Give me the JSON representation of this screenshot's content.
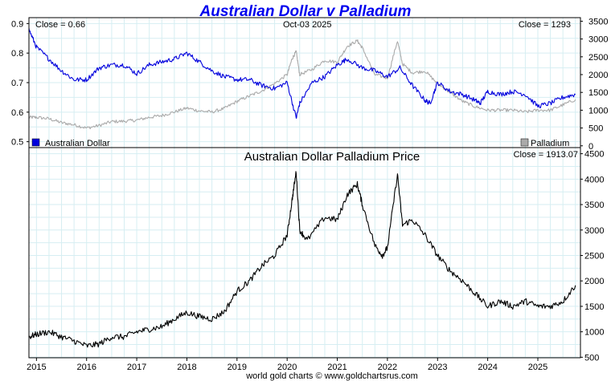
{
  "colors": {
    "aud": "#0000dd",
    "palladium": "#aaaaaa",
    "price": "#000000",
    "title": "#0000ee",
    "grid": "#d6eef2",
    "frame": "#000000"
  },
  "header": {
    "title": "Australian Dollar v Palladium"
  },
  "top_panel": {
    "close_left": "Close = 0.66",
    "date_label": "Oct-03  2025",
    "close_right": "Close = 1293",
    "legend_left": "Australian Dollar",
    "legend_right": "Palladium"
  },
  "bottom_panel": {
    "title": "Australian Dollar Palladium Price",
    "close_label": "Close = 1913.07"
  },
  "footer": {
    "text": "world gold charts © www.goldchartsrus.com"
  },
  "chart_data": [
    {
      "type": "line",
      "title": "Australian Dollar v Palladium",
      "x_range": [
        2014.85,
        2025.85
      ],
      "x_ticks": [
        "2015",
        "2016",
        "2017",
        "2018",
        "2019",
        "2020",
        "2021",
        "2022",
        "2023",
        "2024",
        "2025"
      ],
      "x_tick_values": [
        2015,
        2016,
        2017,
        2018,
        2019,
        2020,
        2021,
        2022,
        2023,
        2024,
        2025
      ],
      "left_axis": {
        "range": [
          0.48,
          0.92
        ],
        "ticks": [
          "0.5",
          "0.6",
          "0.7",
          "0.8",
          "0.9"
        ],
        "tick_values": [
          0.5,
          0.6,
          0.7,
          0.8,
          0.9
        ]
      },
      "right_axis": {
        "range": [
          -50,
          3600
        ],
        "ticks": [
          "0",
          "500",
          "1000",
          "1500",
          "2000",
          "2500",
          "3000",
          "3500"
        ],
        "tick_values": [
          0,
          500,
          1000,
          1500,
          2000,
          2500,
          3000,
          3500
        ]
      },
      "grid": true,
      "series": [
        {
          "name": "Australian Dollar",
          "axis": "left",
          "x": [
            2014.85,
            2015.0,
            2015.25,
            2015.5,
            2015.75,
            2016.0,
            2016.25,
            2016.5,
            2016.75,
            2017.0,
            2017.25,
            2017.5,
            2017.75,
            2018.0,
            2018.25,
            2018.5,
            2018.75,
            2019.0,
            2019.25,
            2019.5,
            2019.75,
            2020.0,
            2020.18,
            2020.25,
            2020.5,
            2020.75,
            2021.0,
            2021.2,
            2021.5,
            2021.75,
            2022.0,
            2022.25,
            2022.5,
            2022.75,
            2022.85,
            2023.0,
            2023.25,
            2023.5,
            2023.75,
            2023.85,
            2024.0,
            2024.25,
            2024.5,
            2024.75,
            2025.0,
            2025.25,
            2025.5,
            2025.75
          ],
          "values": [
            0.88,
            0.82,
            0.78,
            0.74,
            0.71,
            0.71,
            0.75,
            0.76,
            0.76,
            0.73,
            0.76,
            0.77,
            0.78,
            0.8,
            0.77,
            0.74,
            0.72,
            0.71,
            0.71,
            0.69,
            0.68,
            0.7,
            0.58,
            0.63,
            0.7,
            0.72,
            0.76,
            0.78,
            0.75,
            0.74,
            0.72,
            0.75,
            0.69,
            0.64,
            0.63,
            0.7,
            0.67,
            0.66,
            0.64,
            0.63,
            0.67,
            0.66,
            0.67,
            0.66,
            0.62,
            0.63,
            0.65,
            0.66
          ]
        },
        {
          "name": "Palladium",
          "axis": "right",
          "x": [
            2014.85,
            2015.0,
            2015.25,
            2015.5,
            2015.75,
            2016.0,
            2016.25,
            2016.5,
            2016.75,
            2017.0,
            2017.25,
            2017.5,
            2017.75,
            2018.0,
            2018.25,
            2018.5,
            2018.75,
            2019.0,
            2019.25,
            2019.5,
            2019.75,
            2020.0,
            2020.1,
            2020.18,
            2020.25,
            2020.5,
            2020.75,
            2021.0,
            2021.2,
            2021.4,
            2021.5,
            2021.75,
            2022.0,
            2022.2,
            2022.3,
            2022.5,
            2022.75,
            2023.0,
            2023.25,
            2023.5,
            2023.75,
            2024.0,
            2024.25,
            2024.5,
            2024.75,
            2025.0,
            2025.25,
            2025.5,
            2025.75
          ],
          "values": [
            800,
            800,
            760,
            650,
            590,
            500,
            570,
            680,
            690,
            720,
            800,
            850,
            950,
            1060,
            980,
            950,
            1050,
            1250,
            1400,
            1550,
            1750,
            2000,
            2450,
            2650,
            2000,
            2150,
            2400,
            2350,
            2800,
            2950,
            2750,
            2000,
            1900,
            2950,
            2300,
            2050,
            2100,
            1750,
            1500,
            1250,
            1100,
            1000,
            1000,
            1000,
            950,
            1000,
            1000,
            1150,
            1300
          ]
        }
      ]
    },
    {
      "type": "line",
      "title": "Australian Dollar Palladium Price",
      "x_range": [
        2014.85,
        2025.85
      ],
      "x_ticks": [
        "2015",
        "2016",
        "2017",
        "2018",
        "2019",
        "2020",
        "2021",
        "2022",
        "2023",
        "2024",
        "2025"
      ],
      "x_tick_values": [
        2015,
        2016,
        2017,
        2018,
        2019,
        2020,
        2021,
        2022,
        2023,
        2024,
        2025
      ],
      "right_axis": {
        "range": [
          490,
          4620
        ],
        "ticks": [
          "500",
          "1000",
          "1500",
          "2000",
          "2500",
          "3000",
          "3500",
          "4000",
          "4500"
        ],
        "tick_values": [
          500,
          1000,
          1500,
          2000,
          2500,
          3000,
          3500,
          4000,
          4500
        ]
      },
      "grid": true,
      "series": [
        {
          "name": "Australian Dollar Palladium Price",
          "axis": "right",
          "x": [
            2014.85,
            2015.0,
            2015.25,
            2015.5,
            2015.75,
            2016.0,
            2016.25,
            2016.5,
            2016.75,
            2017.0,
            2017.25,
            2017.5,
            2017.75,
            2018.0,
            2018.25,
            2018.5,
            2018.75,
            2019.0,
            2019.25,
            2019.5,
            2019.75,
            2020.0,
            2020.1,
            2020.18,
            2020.25,
            2020.4,
            2020.75,
            2021.0,
            2021.2,
            2021.4,
            2021.5,
            2021.75,
            2021.9,
            2022.0,
            2022.2,
            2022.3,
            2022.5,
            2022.75,
            2023.0,
            2023.25,
            2023.5,
            2023.75,
            2024.0,
            2024.25,
            2024.5,
            2024.75,
            2025.0,
            2025.25,
            2025.5,
            2025.75
          ],
          "values": [
            900,
            950,
            1000,
            900,
            820,
            720,
            760,
            900,
            900,
            1000,
            1050,
            1100,
            1250,
            1380,
            1300,
            1250,
            1400,
            1800,
            2000,
            2300,
            2500,
            2900,
            3600,
            4150,
            3000,
            2800,
            3250,
            3200,
            3700,
            3900,
            3500,
            2700,
            2500,
            2650,
            4100,
            3100,
            3200,
            2900,
            2500,
            2200,
            2000,
            1750,
            1500,
            1600,
            1500,
            1600,
            1500,
            1500,
            1600,
            1913
          ]
        }
      ]
    }
  ]
}
